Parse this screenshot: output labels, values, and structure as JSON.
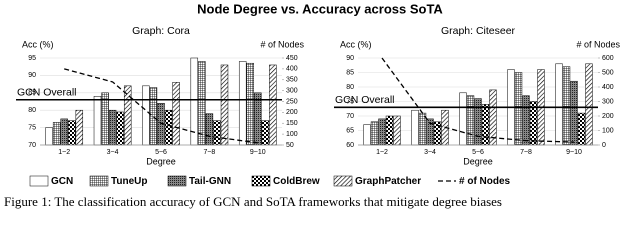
{
  "title": "Node Degree vs. Accuracy across SoTA",
  "caption": "Figure 1: The classification accuracy of GCN and SoTA frameworks that mitigate degree biases",
  "chart_data": [
    {
      "type": "bar",
      "subtitle": "Graph: Cora",
      "y_label": "Acc (%)",
      "y2_label": "# of Nodes",
      "x_label": "Degree",
      "categories": [
        "1~2",
        "3~4",
        "5~6",
        "7~8",
        "9~10"
      ],
      "series": [
        {
          "name": "GCN",
          "pattern": "plain",
          "values": [
            75,
            84,
            87,
            95,
            94
          ]
        },
        {
          "name": "TuneUp",
          "pattern": "grid",
          "values": [
            76.5,
            85,
            86.5,
            94,
            93.5
          ]
        },
        {
          "name": "Tail-GNN",
          "pattern": "dots",
          "values": [
            77.5,
            80,
            82,
            79,
            85
          ]
        },
        {
          "name": "ColdBrew",
          "pattern": "checker",
          "values": [
            77,
            79.5,
            80,
            77,
            77
          ]
        },
        {
          "name": "GraphPatcher",
          "pattern": "diagonal",
          "values": [
            80,
            87,
            88,
            93,
            93
          ]
        },
        {
          "name": "# of Nodes",
          "type": "line",
          "axis": "y2",
          "color": "#000000",
          "values": [
            400,
            340,
            150,
            90,
            60
          ]
        }
      ],
      "reference": {
        "label": "GCN Overall",
        "value": 83
      },
      "ylim": [
        70,
        95
      ],
      "yticks": [
        70,
        75,
        80,
        85,
        90,
        95
      ],
      "y2lim": [
        50,
        450
      ],
      "y2ticks": [
        50,
        100,
        150,
        200,
        250,
        300,
        350,
        400,
        450
      ]
    },
    {
      "type": "bar",
      "subtitle": "Graph: Citeseer",
      "y_label": "Acc (%)",
      "y2_label": "# of Nodes",
      "x_label": "Degree",
      "categories": [
        "1~2",
        "3~4",
        "5~6",
        "7~8",
        "9~10"
      ],
      "series": [
        {
          "name": "GCN",
          "pattern": "plain",
          "values": [
            67,
            72,
            78,
            86,
            88
          ]
        },
        {
          "name": "TuneUp",
          "pattern": "grid",
          "values": [
            68,
            71,
            77,
            85,
            87
          ]
        },
        {
          "name": "Tail-GNN",
          "pattern": "dots",
          "values": [
            69,
            69,
            76,
            77,
            82
          ]
        },
        {
          "name": "ColdBrew",
          "pattern": "checker",
          "values": [
            70,
            68,
            74,
            75,
            71
          ]
        },
        {
          "name": "GraphPatcher",
          "pattern": "diagonal",
          "values": [
            70,
            72,
            79,
            86,
            88
          ]
        },
        {
          "name": "# of Nodes",
          "type": "line",
          "axis": "y2",
          "color": "#000000",
          "values": [
            600,
            150,
            60,
            30,
            20
          ]
        }
      ],
      "reference": {
        "label": "GCN Overall",
        "value": 73
      },
      "ylim": [
        60,
        90
      ],
      "yticks": [
        60,
        65,
        70,
        75,
        80,
        85,
        90
      ],
      "y2lim": [
        0,
        600
      ],
      "y2ticks": [
        0,
        100,
        200,
        300,
        400,
        500,
        600
      ]
    }
  ]
}
